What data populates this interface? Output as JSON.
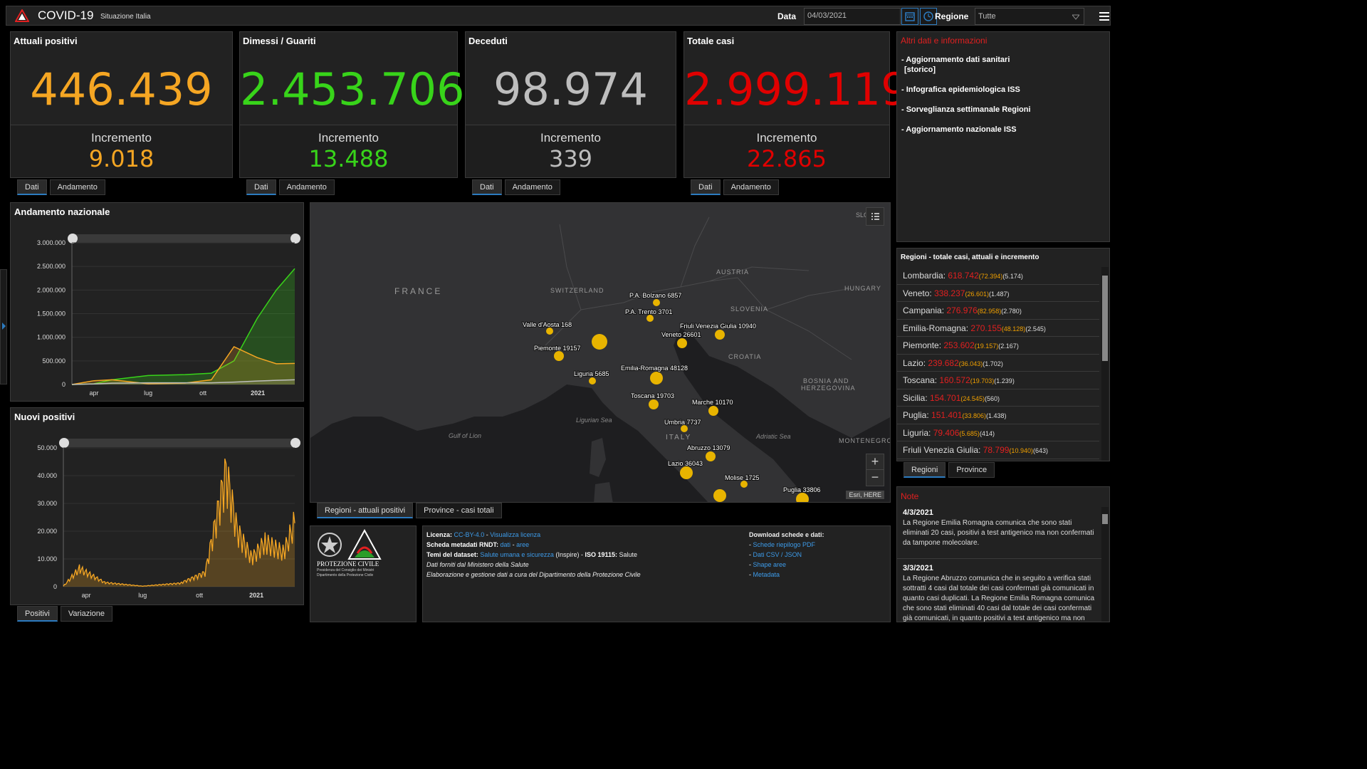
{
  "header": {
    "title": "COVID-19",
    "subtitle": "Situazione Italia",
    "date_label": "Data",
    "date_value": "04/03/2021",
    "region_label": "Regione",
    "region_value": "Tutte"
  },
  "cards": [
    {
      "title": "Attuali positivi",
      "value": "446.439",
      "inc_label": "Incremento",
      "inc": "9.018",
      "color": "#f5a623"
    },
    {
      "title": "Dimessi / Guariti",
      "value": "2.453.706",
      "inc_label": "Incremento",
      "inc": "13.488",
      "color": "#38d41a"
    },
    {
      "title": "Deceduti",
      "value": "98.974",
      "inc_label": "Incremento",
      "inc": "339",
      "color": "#bdbdbd"
    },
    {
      "title": "Totale casi",
      "value": "2.999.119",
      "inc_label": "Incremento",
      "inc": "22.865",
      "color": "#e00000"
    }
  ],
  "card_tabs": [
    "Dati",
    "Andamento"
  ],
  "info": {
    "title": "Altri dati e informazioni",
    "links": [
      "- Aggiornamento dati sanitari",
      "[storico]",
      "- Infografica epidemiologica ISS",
      "- Sorveglianza settimanale Regioni",
      "- Aggiornamento nazionale ISS"
    ]
  },
  "chart1": {
    "title": "Andamento nazionale",
    "yticks": [
      "3.000.000",
      "2.500.000",
      "2.000.000",
      "1.500.000",
      "1.000.000",
      "500.000",
      "0"
    ],
    "xticks": [
      "apr",
      "lug",
      "ott",
      "2021"
    ]
  },
  "chart2": {
    "title": "Nuovi positivi",
    "yticks": [
      "50.000",
      "40.000",
      "30.000",
      "20.000",
      "10.000",
      "0"
    ],
    "xticks": [
      "apr",
      "lug",
      "ott",
      "2021"
    ]
  },
  "chart_data": [
    {
      "type": "area",
      "title": "Andamento nazionale",
      "x": [
        "2020-02-24",
        "2020-04-01",
        "2020-05-01",
        "2020-07-01",
        "2020-09-01",
        "2020-10-15",
        "2020-11-22",
        "2020-12-31",
        "2021-02-01",
        "2021-03-04"
      ],
      "series": [
        {
          "name": "Dimessi / Guariti",
          "color": "#38d41a",
          "values": [
            0,
            15000,
            100000,
            190000,
            210000,
            240000,
            500000,
            1400000,
            2000000,
            2453706
          ]
        },
        {
          "name": "Attuali positivi",
          "color": "#f5a623",
          "values": [
            200,
            80000,
            100000,
            15000,
            30000,
            100000,
            800000,
            570000,
            440000,
            446439
          ]
        },
        {
          "name": "Deceduti",
          "color": "#bdbdbd",
          "values": [
            0,
            12000,
            28000,
            35000,
            35500,
            36500,
            50000,
            74000,
            89000,
            98974
          ]
        }
      ],
      "ylim": [
        0,
        3000000
      ]
    },
    {
      "type": "area",
      "title": "Nuovi positivi",
      "series": [
        {
          "name": "Positivi",
          "color": "#f5a623"
        }
      ],
      "x": [
        "2020-02-24",
        "2020-03-21",
        "2020-05-01",
        "2020-07-01",
        "2020-09-01",
        "2020-10-10",
        "2020-11-13",
        "2020-12-01",
        "2020-12-25",
        "2021-01-15",
        "2021-02-15",
        "2021-03-04"
      ],
      "values": [
        200,
        6500,
        1500,
        200,
        1300,
        5000,
        40900,
        20000,
        10000,
        16000,
        12000,
        22865
      ],
      "ylim": [
        0,
        50000
      ]
    }
  ],
  "chart_tabs": [
    "Positivi",
    "Variazione"
  ],
  "map": {
    "countries": [
      "FRANCE",
      "SWITZERLAND",
      "AUSTRIA",
      "HUNGARY",
      "SLOVENIA",
      "CROATIA",
      "BOSNIA AND",
      "HERZEGOVINA",
      "ITALY",
      "MONTENEGRO",
      "SLO"
    ],
    "seas": [
      "Ligurian Sea",
      "Gulf of Lion",
      "Adriatic Sea"
    ],
    "labels": [
      "P.A. Bolzano 6857",
      "P.A. Trento 3701",
      "Friuli Venezia Giulia 10940",
      "Veneto 26601",
      "Valle d'Aosta 168",
      "Piemonte 19157",
      "Liguria 5685",
      "Emilia-Romagna 48128",
      "Toscana 19703",
      "Marche 10170",
      "Umbria 7737",
      "Abruzzo 13079",
      "Lazio 36043",
      "Molise 1725",
      "Puglia 33806"
    ],
    "attribution": "Esri, HERE",
    "zoom_in": "+",
    "zoom_out": "−",
    "tabs": [
      "Regioni - attuali positivi",
      "Province - casi totali"
    ]
  },
  "footer": {
    "org": "PROTEZIONE CIVILE",
    "org_sub1": "Presidenza del Consiglio dei Ministri",
    "org_sub2": "Dipartimento della Protezione Civile",
    "lic_label": "Licenza:",
    "lic_value": "CC-BY-4.0",
    "lic_link": "Visualizza licenza",
    "meta_label": "Scheda metadati RNDT:",
    "meta_dati": "dati",
    "meta_aree": "aree",
    "temi_label": "Temi del dataset:",
    "temi_value": "Salute umana e sicurezza",
    "temi_rest": "(Inspire) -",
    "iso_label": "ISO 19115:",
    "iso_value": "Salute",
    "line4": "Dati forniti dal Ministero della Salute",
    "line5": "Elaborazione e gestione dati a cura del Dipartimento della Protezione Civile",
    "dl_title": "Download schede e dati:",
    "dl_links": [
      "Schede riepilogo PDF",
      "Dati CSV / JSON",
      "Shape aree",
      "Metadata"
    ]
  },
  "regions": {
    "title": "Regioni - totale casi, attuali e incremento",
    "rows": [
      {
        "name": "Lombardia:",
        "tot": "618.742",
        "att": "(72.394)",
        "inc": "(5.174)"
      },
      {
        "name": "Veneto:",
        "tot": "338.237",
        "att": "(26.601)",
        "inc": "(1.487)"
      },
      {
        "name": "Campania:",
        "tot": "276.976",
        "att": "(82.958)",
        "inc": "(2.780)"
      },
      {
        "name": "Emilia-Romagna:",
        "tot": "270.155",
        "att": "(48.128)",
        "inc": "(2.545)"
      },
      {
        "name": "Piemonte:",
        "tot": "253.602",
        "att": "(19.157)",
        "inc": "(2.167)"
      },
      {
        "name": "Lazio:",
        "tot": "239.682",
        "att": "(36.043)",
        "inc": "(1.702)"
      },
      {
        "name": "Toscana:",
        "tot": "160.572",
        "att": "(19.703)",
        "inc": "(1.239)"
      },
      {
        "name": "Sicilia:",
        "tot": "154.701",
        "att": "(24.545)",
        "inc": "(560)"
      },
      {
        "name": "Puglia:",
        "tot": "151.401",
        "att": "(33.806)",
        "inc": "(1.438)"
      },
      {
        "name": "Liguria:",
        "tot": "79.406",
        "att": "(5.685)",
        "inc": "(414)"
      },
      {
        "name": "Friuli Venezia Giulia:",
        "tot": "78.799",
        "att": "(10.940)",
        "inc": "(643)"
      }
    ],
    "tabs": [
      "Regioni",
      "Province"
    ]
  },
  "notes": {
    "title": "Note",
    "items": [
      {
        "date": "4/3/2021",
        "text": "La Regione Emilia Romagna comunica che sono stati eliminati 20 casi, positivi a test antigenico ma non confermati da tampone molecolare."
      },
      {
        "date": "3/3/2021",
        "text": "La Regione Abruzzo comunica che in seguito a verifica stati sottratti 4 casi dal totale dei casi confermati già comunicati in quanto casi duplicati. La Regione Emilia Romagna comunica che sono stati eliminati 40 casi dal totale dei casi confermati già comunicati, in quanto positivi a test antigenico ma non"
      }
    ]
  }
}
